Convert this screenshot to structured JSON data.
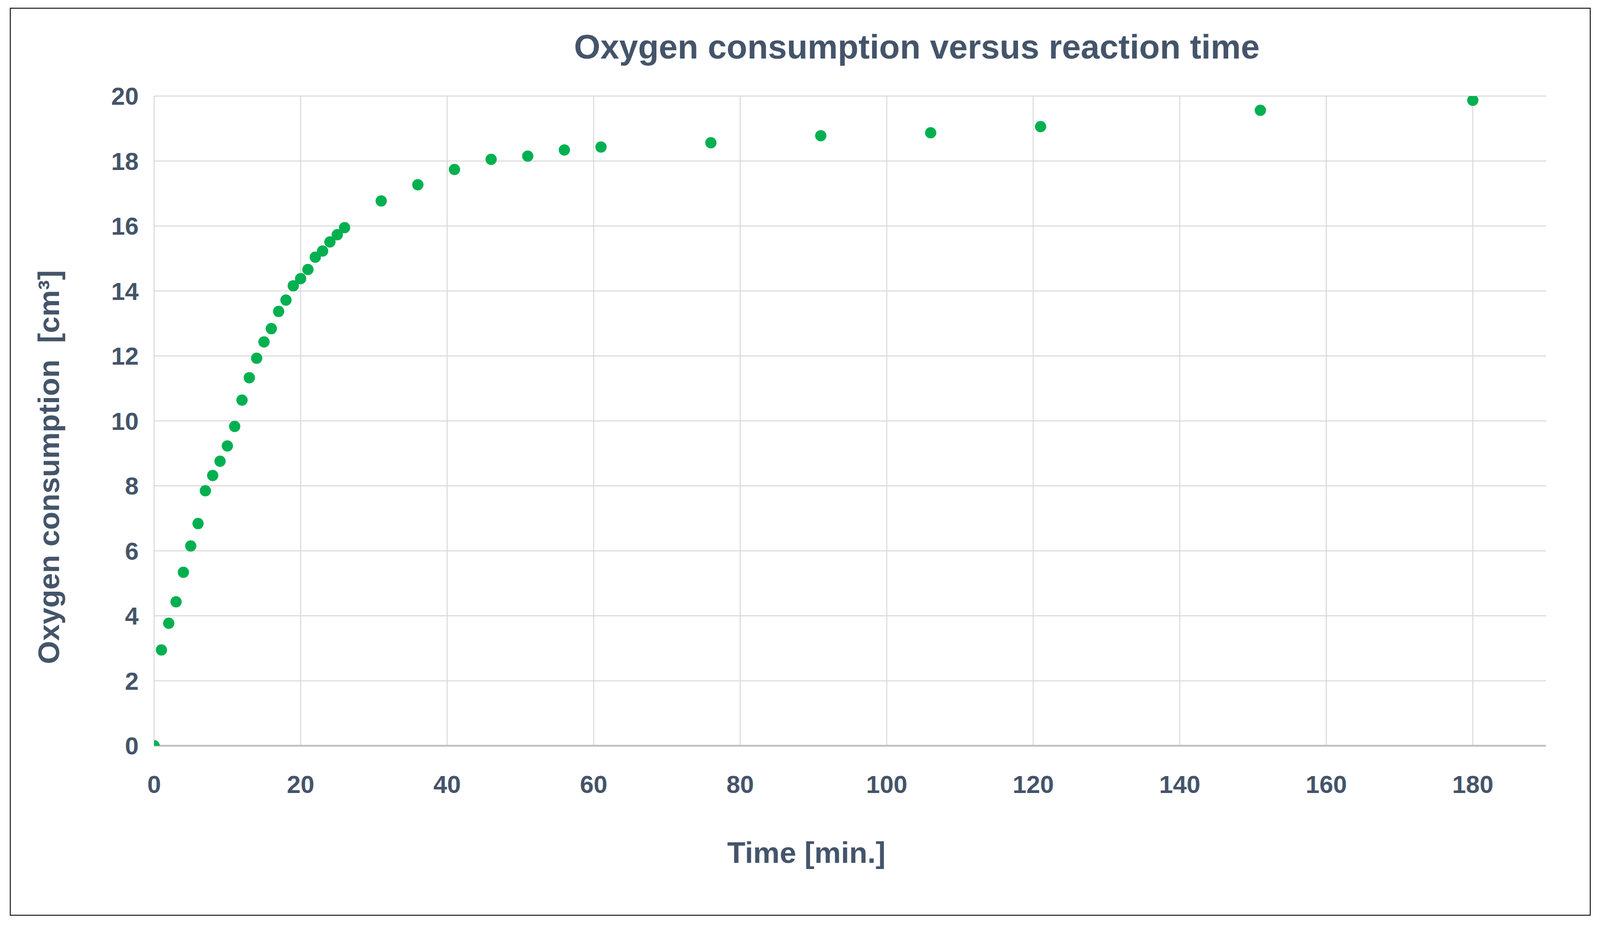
{
  "chart_data": {
    "type": "scatter",
    "title": "Oxygen consumption versus reaction time",
    "x_label": "Time [min.]",
    "y_label": "Oxygen consumption  [cm³]",
    "x": [
      0,
      1,
      2,
      3,
      4,
      5,
      6,
      7,
      8,
      9,
      10,
      11,
      12,
      13,
      14,
      15,
      16,
      17,
      18,
      19,
      20,
      21,
      22,
      23,
      24,
      25,
      26,
      31,
      36,
      41,
      46,
      51,
      56,
      61,
      76,
      91,
      106,
      121,
      151,
      180
    ],
    "values": [
      0,
      2.95,
      3.77,
      4.43,
      5.34,
      6.15,
      6.84,
      7.85,
      8.32,
      8.76,
      9.23,
      9.83,
      10.64,
      11.33,
      11.93,
      12.43,
      12.84,
      13.37,
      13.72,
      14.16,
      14.38,
      14.66,
      15.04,
      15.23,
      15.51,
      15.73,
      15.95,
      16.77,
      17.27,
      17.74,
      18.05,
      18.15,
      18.34,
      18.43,
      18.56,
      18.78,
      18.87,
      19.06,
      19.56,
      19.87
    ],
    "color": "#00b050",
    "marker": "circle",
    "xlim": [
      0,
      190
    ],
    "xticks": [
      0,
      20,
      40,
      60,
      80,
      100,
      120,
      140,
      160,
      180
    ],
    "ylim": [
      0,
      20
    ],
    "yticks": [
      0,
      2,
      4,
      6,
      8,
      10,
      12,
      14,
      16,
      18,
      20
    ],
    "grid": true
  }
}
